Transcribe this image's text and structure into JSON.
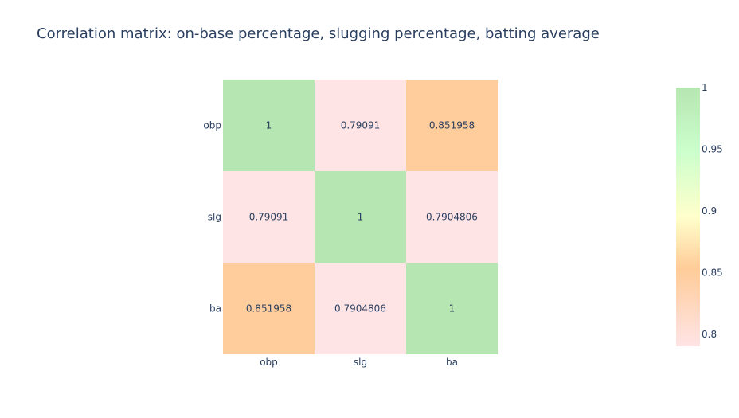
{
  "chart_data": {
    "type": "heatmap",
    "title": "Correlation matrix: on-base percentage, slugging percentage, batting average",
    "x_categories": [
      "obp",
      "slg",
      "ba"
    ],
    "y_categories": [
      "obp",
      "slg",
      "ba"
    ],
    "z": [
      [
        1,
        0.79091,
        0.851958
      ],
      [
        0.79091,
        1,
        0.7904806
      ],
      [
        0.851958,
        0.7904806,
        1
      ]
    ],
    "text": [
      [
        "1",
        "0.79091",
        "0.851958"
      ],
      [
        "0.79091",
        "1",
        "0.7904806"
      ],
      [
        "0.851958",
        "0.7904806",
        "1"
      ]
    ],
    "colorscale": [
      [
        0.0,
        "#ffe4e6"
      ],
      [
        0.3,
        "#ffcc99"
      ],
      [
        0.5,
        "#ffffcc"
      ],
      [
        0.75,
        "#ccffcc"
      ],
      [
        1.0,
        "#b6e6b2"
      ]
    ],
    "zmin": 0.7904806,
    "zmax": 1,
    "colorbar": {
      "tickvals": [
        0.8,
        0.85,
        0.9,
        0.95,
        1
      ],
      "ticktext": [
        "0.8",
        "0.85",
        "0.9",
        "0.95",
        "1"
      ]
    }
  }
}
